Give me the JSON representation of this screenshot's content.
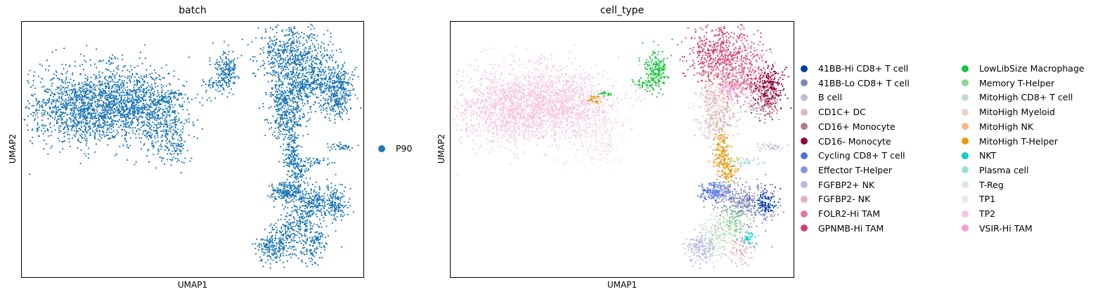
{
  "chart_data": [
    {
      "type": "scatter",
      "title": "batch",
      "xlabel": "UMAP1",
      "ylabel": "UMAP2",
      "grid": false,
      "legend_placement": "right",
      "series": [
        {
          "name": "P90",
          "color": "#1f77b4"
        }
      ]
    },
    {
      "type": "scatter",
      "title": "cell_type",
      "xlabel": "UMAP1",
      "ylabel": "UMAP2",
      "grid": false,
      "legend_placement": "right",
      "series": [
        {
          "name": "41BB-Hi CD8+ T cell",
          "color": "#023fa5"
        },
        {
          "name": "41BB-Lo CD8+ T cell",
          "color": "#7d87b9"
        },
        {
          "name": "B cell",
          "color": "#bec1d4"
        },
        {
          "name": "CD1C+ DC",
          "color": "#d6bcc0"
        },
        {
          "name": "CD16+ Monocyte",
          "color": "#bb7784"
        },
        {
          "name": "CD16- Monocyte",
          "color": "#8e063b"
        },
        {
          "name": "Cycling CD8+ T cell",
          "color": "#4a6fe3"
        },
        {
          "name": "Effector T-Helper",
          "color": "#8595e1"
        },
        {
          "name": "FGFBP2+ NK",
          "color": "#b5bbe3"
        },
        {
          "name": "FGFBP2- NK",
          "color": "#e6afb9"
        },
        {
          "name": "FOLR2-Hi TAM",
          "color": "#e07b91"
        },
        {
          "name": "GPNMB-Hi TAM",
          "color": "#d33f6a"
        },
        {
          "name": "LowLibSize Macrophage",
          "color": "#11c638"
        },
        {
          "name": "Memory T-Helper",
          "color": "#8dd593"
        },
        {
          "name": "MitoHigh CD8+ T cell",
          "color": "#c6dec7"
        },
        {
          "name": "MitoHigh Myeloid",
          "color": "#ead3c6"
        },
        {
          "name": "MitoHigh NK",
          "color": "#f0b98d"
        },
        {
          "name": "MitoHigh T-Helper",
          "color": "#ef9708"
        },
        {
          "name": "NKT",
          "color": "#0fcfc0"
        },
        {
          "name": "Plasma cell",
          "color": "#9cded6"
        },
        {
          "name": "T-Reg",
          "color": "#d5eae7"
        },
        {
          "name": "TP1",
          "color": "#f3e1eb"
        },
        {
          "name": "TP2",
          "color": "#f6c4e1"
        },
        {
          "name": "VSIR-Hi TAM",
          "color": "#f79cd4"
        }
      ]
    }
  ]
}
